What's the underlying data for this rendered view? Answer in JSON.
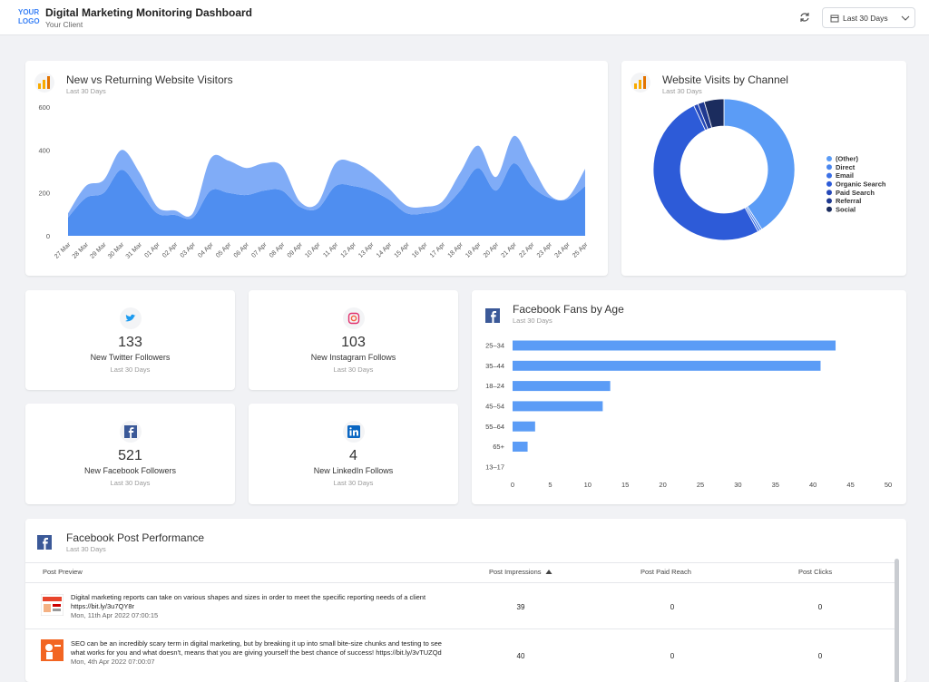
{
  "header": {
    "logo": [
      "YOUR",
      "LOGO"
    ],
    "title": "Digital Marketing Monitoring Dashboard",
    "client": "Your Client",
    "date_range": "Last 30 Days"
  },
  "chart_data": [
    {
      "type": "area",
      "stacked": true,
      "title": "New vs Returning Website Visitors",
      "subtitle": "Last 30 Days",
      "categories": [
        "27 Mar",
        "28 Mar",
        "29 Mar",
        "30 Mar",
        "31 Mar",
        "01 Apr",
        "02 Apr",
        "03 Apr",
        "04 Apr",
        "05 Apr",
        "06 Apr",
        "07 Apr",
        "08 Apr",
        "09 Apr",
        "10 Apr",
        "11 Apr",
        "12 Apr",
        "13 Apr",
        "14 Apr",
        "15 Apr",
        "16 Apr",
        "17 Apr",
        "18 Apr",
        "19 Apr",
        "20 Apr",
        "21 Apr",
        "22 Apr",
        "23 Apr",
        "24 Apr",
        "25 Apr"
      ],
      "series": [
        {
          "color": "#4f8ef0",
          "values": [
            85,
            177,
            200,
            308,
            211,
            105,
            97,
            85,
            211,
            200,
            190,
            211,
            211,
            135,
            127,
            232,
            232,
            211,
            169,
            105,
            105,
            127,
            211,
            316,
            211,
            338,
            232,
            177,
            169,
            232
          ]
        },
        {
          "color": "#80acf7",
          "values": [
            20,
            55,
            60,
            92,
            84,
            30,
            21,
            20,
            149,
            150,
            126,
            127,
            114,
            25,
            25,
            106,
            110,
            84,
            51,
            35,
            30,
            33,
            84,
            104,
            63,
            127,
            98,
            13,
            8,
            80
          ]
        }
      ],
      "ylim": [
        0,
        600
      ],
      "yticks": [
        0,
        200,
        400,
        600
      ]
    },
    {
      "type": "donut",
      "title": "Website Visits by Channel",
      "subtitle": "Last 30 Days",
      "categories": [
        "(Other)",
        "Direct",
        "Email",
        "Organic Search",
        "Paid Search",
        "Referral",
        "Social"
      ],
      "values": [
        41,
        0.5,
        0.5,
        51,
        1,
        1.5,
        4.5
      ],
      "colors": [
        "#5b9cf6",
        "#4a86ee",
        "#3b70e6",
        "#2d5bd8",
        "#2548b8",
        "#1f3990",
        "#1b2c5e"
      ]
    },
    {
      "type": "hbar",
      "title": "Facebook Fans by Age",
      "subtitle": "Last 30 Days",
      "categories": [
        "25–34",
        "35–44",
        "18–24",
        "45–54",
        "55–64",
        "65+",
        "13–17"
      ],
      "values": [
        43,
        41,
        13,
        12,
        3,
        2,
        0
      ],
      "color": "#5b9cf6",
      "xlim": [
        0,
        50
      ],
      "xticks": [
        0,
        5,
        10,
        15,
        20,
        25,
        30,
        35,
        40,
        45,
        50
      ]
    }
  ],
  "kpis": [
    {
      "value": 133,
      "label": "New Twitter Followers",
      "period": "Last 30 Days"
    },
    {
      "value": 103,
      "label": "New Instagram Follows",
      "period": "Last 30 Days"
    },
    {
      "value": 521,
      "label": "New Facebook Followers",
      "period": "Last 30 Days"
    },
    {
      "value": 4,
      "label": "New LinkedIn Follows",
      "period": "Last 30 Days"
    }
  ],
  "post_table": {
    "title": "Facebook Post Performance",
    "subtitle": "Last 30 Days",
    "columns": [
      "Post Preview",
      "Post Impressions",
      "Post Paid Reach",
      "Post Clicks"
    ],
    "rows": [
      {
        "text": "Digital marketing reports can take on various shapes and sizes in order to meet the specific reporting needs of a client https://bit.ly/3u7QY8r",
        "date": "Mon, 11th Apr 2022 07:00:15",
        "values": [
          39,
          0,
          0
        ]
      },
      {
        "text": "SEO can be an incredibly scary term in digital marketing, but by breaking it up into small bite-size chunks and testing to see what works for you and what doesn't, means that you are giving yourself the best chance of success! https://bit.ly/3vTUZQd",
        "date": "Mon, 4th Apr 2022 07:00:07",
        "values": [
          40,
          0,
          0
        ]
      }
    ]
  }
}
